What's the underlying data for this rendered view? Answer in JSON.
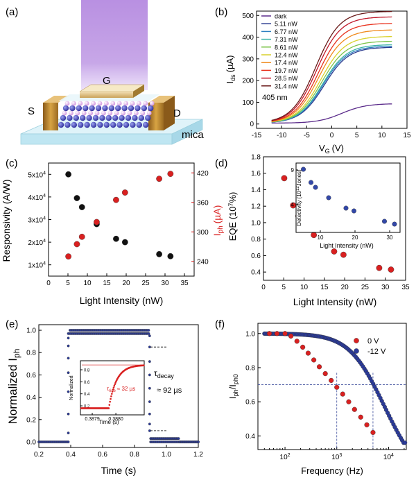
{
  "panel_labels": {
    "a": "(a)",
    "b": "(b)",
    "c": "(c)",
    "d": "(d)",
    "e": "(e)",
    "f": "(f)"
  },
  "diagram_a": {
    "labels": {
      "gate": "G",
      "source": "S",
      "drain": "D",
      "substrate": "mica"
    },
    "colors": {
      "beam": "#b58ae0",
      "electrode": "#c8902e",
      "atom_top": "#ffffff",
      "atom_mid": "#c87cd8",
      "atom_low": "#3a3ab0",
      "substrate": "#bfe6f2"
    }
  },
  "chart_data": [
    {
      "id": "b",
      "type": "line",
      "xlabel_main": "V",
      "xlabel_sub": "G",
      "xlabel_unit": "(V)",
      "ylabel_main": "I",
      "ylabel_sub": "ds",
      "ylabel_unit": "(µA)",
      "xlim": [
        -15,
        15
      ],
      "ylim": [
        -20,
        520
      ],
      "xticks": [
        -15,
        -10,
        -5,
        0,
        5,
        10,
        15
      ],
      "yticks": [
        0,
        100,
        200,
        300,
        400,
        500
      ],
      "annotation": "405 nm",
      "legend_position": "top-left",
      "series": [
        {
          "name": "dark",
          "color": "#5a2a8a",
          "vth": 2,
          "isat": 90
        },
        {
          "name": "5.11 nW",
          "color": "#2a3b8f",
          "vth": -1.5,
          "isat": 350
        },
        {
          "name": "6.77 nW",
          "color": "#2d7fc1",
          "vth": -1.7,
          "isat": 355
        },
        {
          "name": "7.31 nW",
          "color": "#3bb3a6",
          "vth": -1.8,
          "isat": 362
        },
        {
          "name": "8.61 nW",
          "color": "#7cc44a",
          "vth": -2.0,
          "isat": 378
        },
        {
          "name": "12.4 nW",
          "color": "#d9d12a",
          "vth": -2.2,
          "isat": 400
        },
        {
          "name": "17.4 nW",
          "color": "#f08a1c",
          "vth": -2.5,
          "isat": 430
        },
        {
          "name": "19.7 nW",
          "color": "#e8301c",
          "vth": -2.7,
          "isat": 460
        },
        {
          "name": "28.5 nW",
          "color": "#c0182a",
          "vth": -3.0,
          "isat": 490
        },
        {
          "name": "31.4 nW",
          "color": "#6a1a1a",
          "vth": -3.2,
          "isat": 515
        }
      ]
    },
    {
      "id": "c",
      "type": "scatter",
      "xlabel": "Light Intensity (nW)",
      "ylabel_left": "Responsivity (A/W)",
      "ylabel_right_main": "I",
      "ylabel_right_sub": "ph",
      "ylabel_right_unit": "(µA)",
      "xlim": [
        0,
        37.5
      ],
      "xticks": [
        0,
        5,
        10,
        15,
        20,
        25,
        30,
        35
      ],
      "ylim_left": [
        5000,
        55000
      ],
      "yticks_left": [
        {
          "v": 10000,
          "mantissa": "1x10",
          "exp": "4"
        },
        {
          "v": 20000,
          "mantissa": "2x10",
          "exp": "4"
        },
        {
          "v": 30000,
          "mantissa": "3x10",
          "exp": "4"
        },
        {
          "v": 40000,
          "mantissa": "4x10",
          "exp": "4"
        },
        {
          "v": 50000,
          "mantissa": "5x10",
          "exp": "4"
        }
      ],
      "ylim_right": [
        210,
        440
      ],
      "yticks_right": [
        240,
        300,
        360,
        420
      ],
      "series": [
        {
          "name": "Responsivity",
          "axis": "left",
          "color": "#111111",
          "x": [
            5.11,
            7.31,
            8.61,
            12.4,
            17.4,
            19.7,
            28.5,
            31.4
          ],
          "y": [
            50000,
            39500,
            35500,
            28000,
            21500,
            20000,
            14700,
            13800
          ]
        },
        {
          "name": "Iph",
          "axis": "right",
          "color": "#d92020",
          "x": [
            5.11,
            7.31,
            8.61,
            12.4,
            17.4,
            19.7,
            28.5,
            31.4
          ],
          "y": [
            250,
            275,
            290,
            320,
            365,
            380,
            408,
            418
          ]
        }
      ]
    },
    {
      "id": "d",
      "type": "scatter",
      "xlabel": "Light Intensity (nW)",
      "ylabel_main": "EQE (10",
      "ylabel_exp": "7",
      "ylabel_unit": "%)",
      "xlim": [
        0,
        35
      ],
      "ylim": [
        0.3,
        1.8
      ],
      "xticks": [
        0,
        5,
        10,
        15,
        20,
        25,
        30,
        35
      ],
      "yticks": [
        0.4,
        0.6,
        0.8,
        1.0,
        1.2,
        1.4,
        1.6,
        1.8
      ],
      "ytick_labels": [
        "0.4",
        "0.6",
        "0.8",
        "1.0",
        "1.2",
        "1.4",
        "1.6",
        "1.8"
      ],
      "color": "#d92020",
      "x": [
        5.11,
        7.31,
        8.61,
        12.4,
        17.4,
        19.7,
        28.5,
        31.4
      ],
      "y": [
        1.54,
        1.21,
        1.08,
        0.85,
        0.65,
        0.61,
        0.45,
        0.43
      ],
      "inset": {
        "xlabel": "Light Intensity (nW)",
        "ylabel_main": "Detectivity (10",
        "ylabel_exp": "12",
        "ylabel_unit": "Jones)",
        "xlim": [
          3,
          33
        ],
        "ylim": [
          0,
          10
        ],
        "xticks": [
          10,
          20,
          30
        ],
        "yticks": [
          4,
          9
        ],
        "color": "#3348a8",
        "x": [
          5.11,
          7.31,
          8.61,
          12.4,
          17.4,
          19.7,
          28.5,
          31.4
        ],
        "y": [
          9.1,
          7.2,
          6.5,
          5.0,
          3.5,
          3.1,
          1.6,
          1.2
        ]
      }
    },
    {
      "id": "e",
      "type": "scatter",
      "xlabel": "Time (s)",
      "ylabel_main": "Normalized I",
      "ylabel_sub": "ph",
      "xlim": [
        0.2,
        1.2
      ],
      "ylim": [
        -0.05,
        1.05
      ],
      "xticks": [
        0.2,
        0.4,
        0.6,
        0.8,
        1.0,
        1.2
      ],
      "yticks": [
        0.0,
        0.2,
        0.4,
        0.6,
        0.8,
        1.0
      ],
      "xtick_labels": [
        "0.2",
        "0.4",
        "0.6",
        "0.8",
        "1.0",
        "1.2"
      ],
      "ytick_labels": [
        "0.0",
        "0.2",
        "0.4",
        "0.6",
        "0.8",
        "1.0"
      ],
      "color": "#2a3a9a",
      "rise_time": 0.385,
      "fall_time": 0.895,
      "annotation_main": "τ",
      "annotation_sub": "decay",
      "annotation_value": "≈ 92  µs",
      "inset": {
        "xlabel": "Time (s)",
        "ylabel": "Normalized",
        "xlim": [
          0.38785,
          0.38812
        ],
        "xticks": [
          0.3879,
          0.388
        ],
        "xtick_labels": [
          "0.3879",
          "0.3880"
        ],
        "ylim": [
          0.05,
          0.95
        ],
        "yticks": [
          0.2,
          0.4,
          0.6,
          0.8
        ],
        "ytick_labels": [
          "0.2",
          "0.4",
          "0.6",
          "0.8"
        ],
        "color": "#d92020",
        "annotation_main": "τ",
        "annotation_sub": "rise",
        "annotation_value": "≈ 32 µs"
      }
    },
    {
      "id": "f",
      "type": "scatter",
      "xlabel": "Frequency (Hz)",
      "ylabel_main": "I",
      "ylabel_sub": "ph",
      "ylabel_mid": "/I",
      "ylabel_sub2": "ph0",
      "xscale": "log",
      "xlim": [
        30,
        22000
      ],
      "ylim": [
        0.32,
        1.06
      ],
      "xticks": [
        {
          "v": 100,
          "base": "10",
          "exp": "2"
        },
        {
          "v": 1000,
          "base": "10",
          "exp": "3"
        },
        {
          "v": 10000,
          "base": "10",
          "exp": "4"
        }
      ],
      "yticks": [
        0.4,
        0.6,
        0.8,
        1.0
      ],
      "ytick_labels": [
        "0.4",
        "0.6",
        "0.8",
        "1.0"
      ],
      "legend_position": "top-right",
      "reference_level": 0.7,
      "reference_x": [
        1000,
        5000
      ],
      "series": [
        {
          "name": "0 V",
          "color": "#d92020",
          "x": [
            50,
            70,
            100,
            130,
            170,
            220,
            280,
            360,
            460,
            600,
            780,
            1000,
            1300,
            1700,
            2200,
            2900,
            3800,
            5000
          ],
          "y": [
            1.0,
            1.0,
            1.0,
            0.985,
            0.955,
            0.92,
            0.885,
            0.845,
            0.805,
            0.765,
            0.725,
            0.685,
            0.645,
            0.6,
            0.555,
            0.51,
            0.465,
            0.42
          ]
        },
        {
          "name": "-12 V",
          "color": "#2a3a9a",
          "f0": 5000
        }
      ]
    }
  ]
}
